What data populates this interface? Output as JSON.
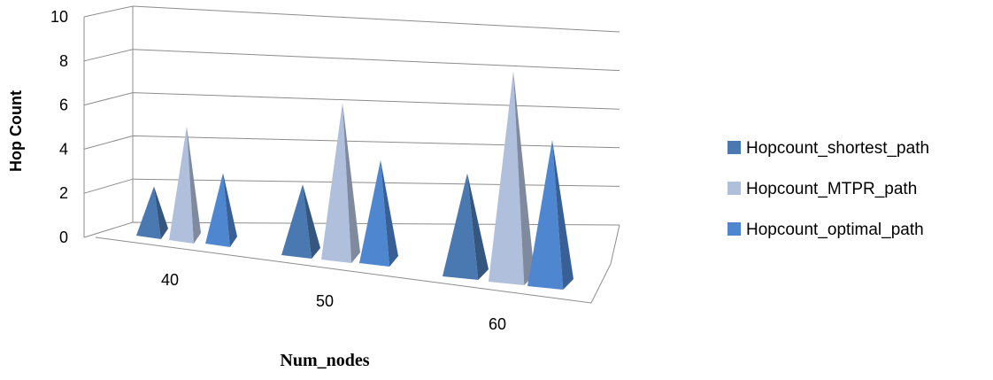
{
  "chart_data": {
    "type": "bar",
    "style": "3d-pyramid",
    "categories": [
      "40",
      "50",
      "60"
    ],
    "series": [
      {
        "name": "Hopcount_shortest_path",
        "values": [
          2,
          3,
          4.5
        ],
        "color": "#4a78b0"
      },
      {
        "name": "Hopcount_MTPR_path",
        "values": [
          5,
          7,
          9.5
        ],
        "color": "#b0bfdc"
      },
      {
        "name": "Hopcount_optimal_path",
        "values": [
          3,
          4.5,
          6.5
        ],
        "color": "#4f86d0"
      }
    ],
    "y_ticks": [
      "0",
      "2",
      "4",
      "6",
      "8",
      "10"
    ],
    "ylim": [
      0,
      10
    ],
    "xlabel": "Num_nodes",
    "ylabel": "Hop Count",
    "grid": true,
    "legend": "right"
  }
}
